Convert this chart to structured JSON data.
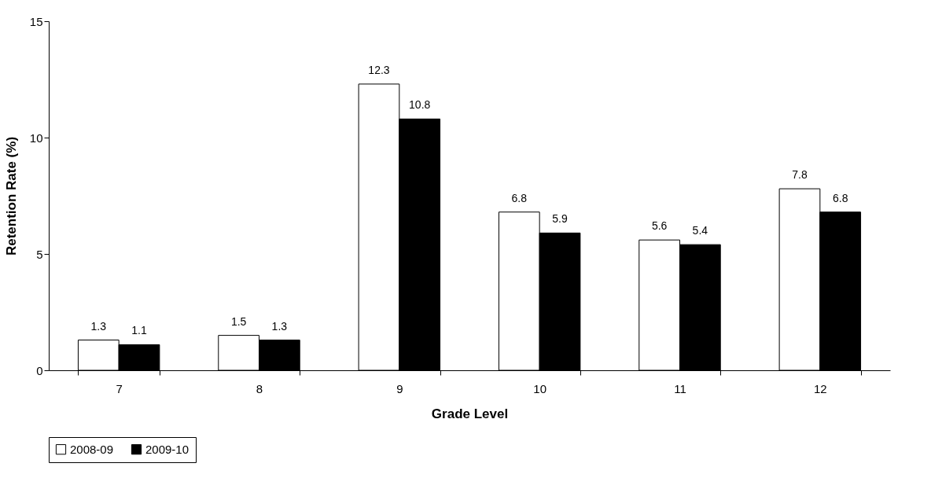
{
  "chart_data": {
    "type": "bar",
    "xlabel": "Grade Level",
    "ylabel": "Retention Rate (%)",
    "categories": [
      "7",
      "8",
      "9",
      "10",
      "11",
      "12"
    ],
    "series": [
      {
        "name": "2008-09",
        "color": "#ffffff",
        "values": [
          1.3,
          1.5,
          12.3,
          6.8,
          5.6,
          7.8
        ]
      },
      {
        "name": "2009-10",
        "color": "#000000",
        "values": [
          1.1,
          1.3,
          10.8,
          5.9,
          5.4,
          6.8
        ]
      }
    ],
    "ylim": [
      0,
      15
    ],
    "yticks": [
      0,
      5,
      10,
      15
    ],
    "grid": false,
    "legend": "bottom",
    "data_labels": true
  }
}
